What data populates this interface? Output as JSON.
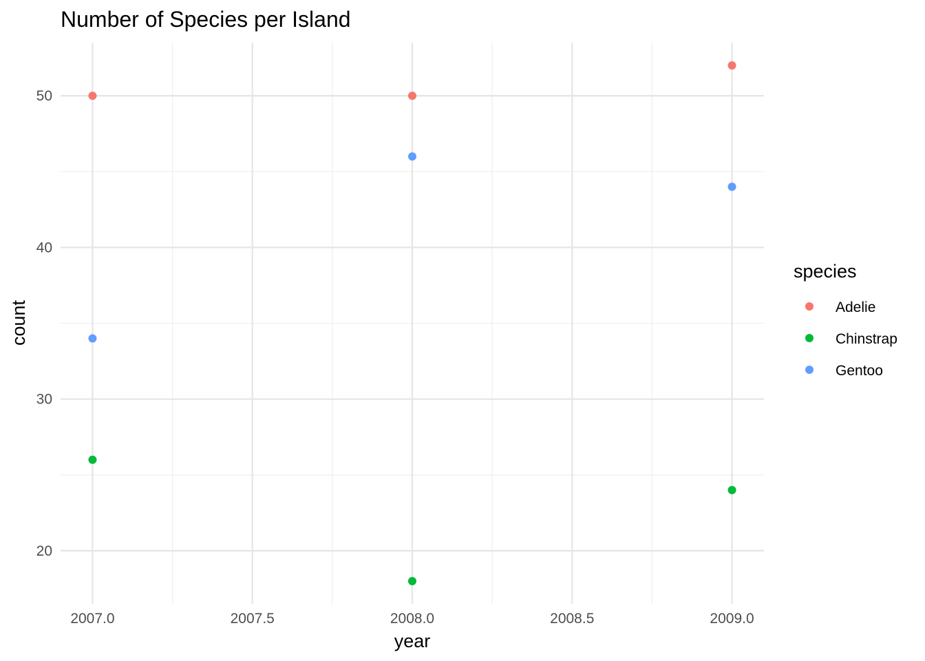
{
  "chart_data": {
    "type": "scatter",
    "title": "Number of Species per Island",
    "xlabel": "year",
    "ylabel": "count",
    "xlim": [
      2006.9,
      2009.1
    ],
    "ylim": [
      16.5,
      53.5
    ],
    "x_ticks": [
      2007.0,
      2007.5,
      2008.0,
      2008.5,
      2009.0
    ],
    "x_tick_labels": [
      "2007.0",
      "2007.5",
      "2008.0",
      "2008.5",
      "2009.0"
    ],
    "y_ticks": [
      20,
      30,
      40,
      50
    ],
    "y_tick_labels": [
      "20",
      "30",
      "40",
      "50"
    ],
    "grid": true,
    "legend": {
      "title": "species",
      "placement": "right"
    },
    "series": [
      {
        "name": "Adelie",
        "color": "#F8766D",
        "points": [
          {
            "x": 2007,
            "y": 50
          },
          {
            "x": 2008,
            "y": 50
          },
          {
            "x": 2009,
            "y": 52
          }
        ]
      },
      {
        "name": "Chinstrap",
        "color": "#00BA38",
        "points": [
          {
            "x": 2007,
            "y": 26
          },
          {
            "x": 2008,
            "y": 18
          },
          {
            "x": 2009,
            "y": 24
          }
        ]
      },
      {
        "name": "Gentoo",
        "color": "#619CFF",
        "points": [
          {
            "x": 2007,
            "y": 34
          },
          {
            "x": 2008,
            "y": 46
          },
          {
            "x": 2009,
            "y": 44
          }
        ]
      }
    ]
  }
}
